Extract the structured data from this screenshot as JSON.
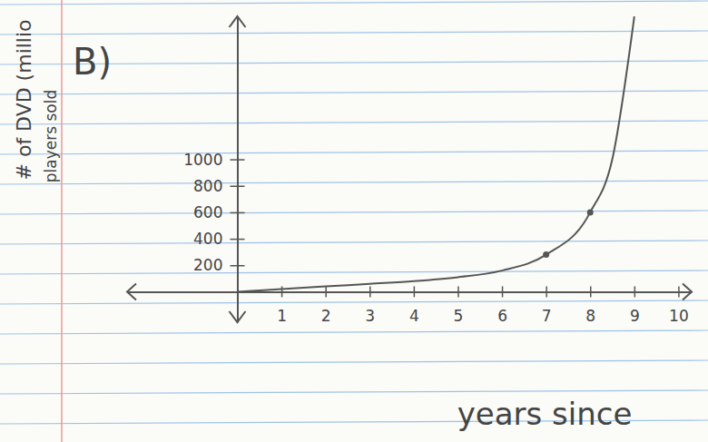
{
  "chart_data": {
    "type": "line",
    "panel_label": "B)",
    "ylabel": [
      "# of DVD (millio",
      "players sold"
    ],
    "xlabel": "years since",
    "color": "#555555",
    "series": [
      {
        "type": "line",
        "x": [
          0,
          1,
          2,
          3,
          4,
          5,
          6,
          7,
          8,
          8.5,
          9
        ],
        "values": [
          0,
          20,
          40,
          60,
          80,
          110,
          160,
          280,
          600,
          1000,
          2080
        ]
      },
      {
        "type": "scatter",
        "marker": "circle",
        "x": [
          7,
          8
        ],
        "values": [
          280,
          600
        ]
      }
    ],
    "xlim": [
      -2.5,
      10.3
    ],
    "xticks": [
      1,
      2,
      3,
      4,
      5,
      6,
      7,
      8,
      9,
      10
    ],
    "ylim": [
      -230,
      2080
    ],
    "yticks": [
      200,
      400,
      600,
      800,
      1000
    ],
    "grid": false
  }
}
